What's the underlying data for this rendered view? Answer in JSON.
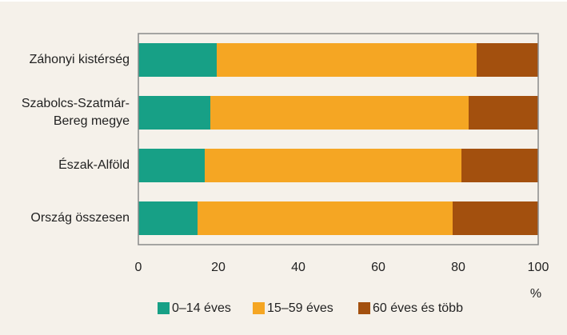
{
  "chart_data": {
    "type": "stacked_barh",
    "categories": [
      "Záhonyi kistérség",
      [
        "Szabolcs-Szatmár-",
        "Bereg megye"
      ],
      "Észak-Alföld",
      "Ország összesen"
    ],
    "series": [
      {
        "name": "0–14 éves",
        "color": "#17a086",
        "values": [
          19.6,
          18.0,
          16.6,
          14.8
        ]
      },
      {
        "name": "15–59 éves",
        "color": "#f5a623",
        "values": [
          65.0,
          64.6,
          64.2,
          63.8
        ]
      },
      {
        "name": "60 éves és több",
        "color": "#a3500e",
        "values": [
          15.4,
          17.4,
          19.2,
          21.4
        ]
      }
    ],
    "xlim": [
      0,
      100
    ],
    "xticks": [
      0,
      20,
      40,
      60,
      80,
      100
    ],
    "xlabel": "%",
    "grid": false,
    "legend": "bottom"
  }
}
